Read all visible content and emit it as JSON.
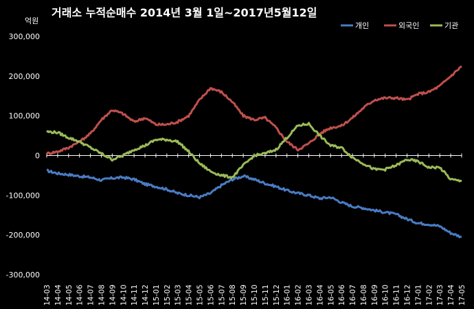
{
  "chart_data": {
    "type": "line",
    "title": "거래소 누적순매수 2014년 3월 1일~2017년5월12일",
    "unit_label": "억원",
    "ylim": [
      -300000,
      300000
    ],
    "y_ticks": [
      300000,
      200000,
      100000,
      0,
      -100000,
      -200000,
      -300000
    ],
    "y_tick_labels": [
      "300,000",
      "200,000",
      "100,000",
      "0",
      "-100,000",
      "-200,000",
      "-300,000"
    ],
    "categories": [
      "14-03",
      "14-04",
      "14-05",
      "14-06",
      "14-07",
      "14-08",
      "14-09",
      "14-10",
      "14-11",
      "14-12",
      "15-01",
      "15-02",
      "15-03",
      "15-04",
      "15-05",
      "15-06",
      "15-07",
      "15-08",
      "15-09",
      "15-10",
      "15-11",
      "15-12",
      "16-01",
      "16-02",
      "16-03",
      "16-04",
      "16-05",
      "16-06",
      "16-07",
      "16-08",
      "16-09",
      "16-10",
      "16-11",
      "16-12",
      "17-01",
      "17-02",
      "17-03",
      "17-04",
      "17-05"
    ],
    "grid": false,
    "legend_position": "top-right",
    "series": [
      {
        "name": "개인",
        "color": "#4a7cc4",
        "values": [
          -38000,
          -45000,
          -48000,
          -52000,
          -55000,
          -62000,
          -57000,
          -55000,
          -60000,
          -72000,
          -78000,
          -85000,
          -95000,
          -100000,
          -105000,
          -95000,
          -75000,
          -60000,
          -52000,
          -60000,
          -70000,
          -78000,
          -88000,
          -95000,
          -100000,
          -108000,
          -105000,
          -118000,
          -128000,
          -132000,
          -138000,
          -143000,
          -148000,
          -160000,
          -170000,
          -173000,
          -178000,
          -195000,
          -205000
        ]
      },
      {
        "name": "외국인",
        "color": "#c0504d",
        "values": [
          5000,
          10000,
          20000,
          35000,
          55000,
          90000,
          115000,
          105000,
          85000,
          95000,
          78000,
          78000,
          85000,
          100000,
          140000,
          170000,
          160000,
          135000,
          100000,
          90000,
          95000,
          70000,
          35000,
          15000,
          30000,
          55000,
          70000,
          75000,
          95000,
          120000,
          140000,
          145000,
          145000,
          140000,
          155000,
          160000,
          175000,
          200000,
          225000
        ]
      },
      {
        "name": "기관",
        "color": "#9bbb59",
        "values": [
          60000,
          58000,
          45000,
          35000,
          20000,
          5000,
          -10000,
          0,
          15000,
          25000,
          40000,
          40000,
          35000,
          10000,
          -20000,
          -40000,
          -50000,
          -55000,
          -25000,
          0,
          5000,
          15000,
          45000,
          75000,
          80000,
          50000,
          25000,
          20000,
          -5000,
          -20000,
          -35000,
          -35000,
          -25000,
          -10000,
          -15000,
          -30000,
          -30000,
          -60000,
          -65000
        ]
      }
    ]
  }
}
